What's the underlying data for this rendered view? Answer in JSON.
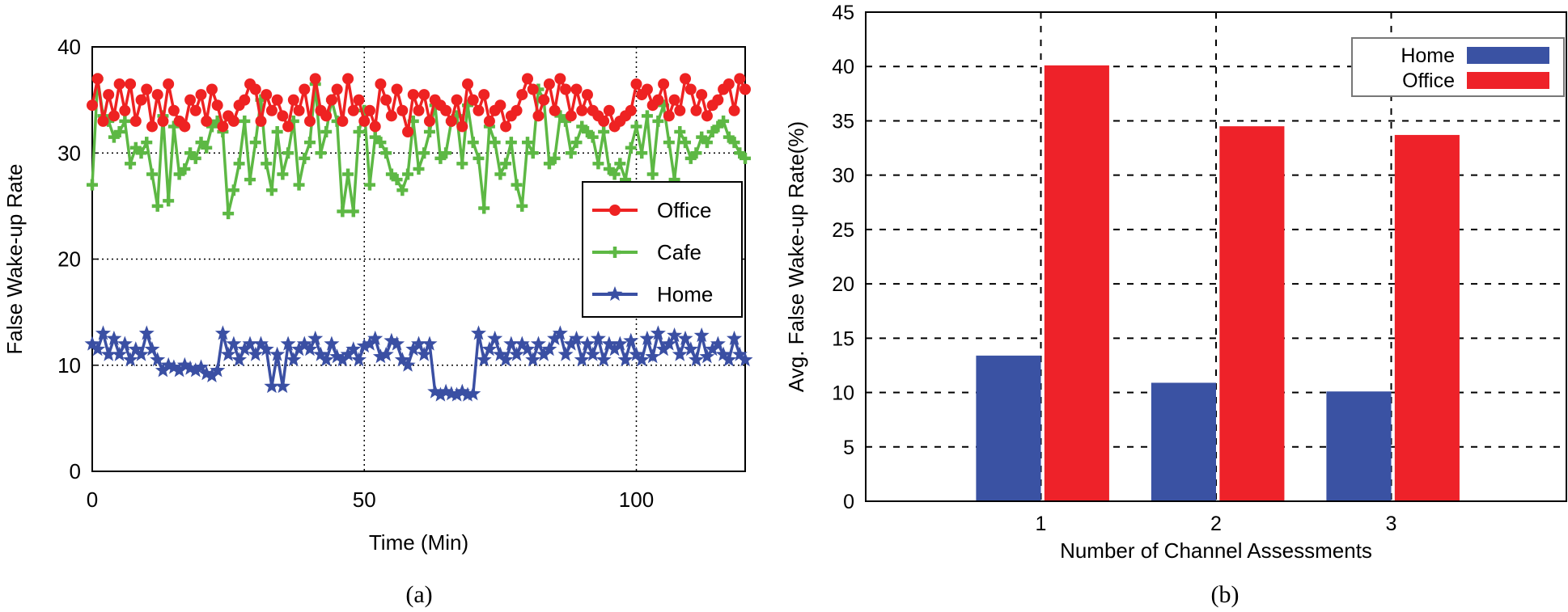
{
  "chart_data": [
    {
      "type": "line",
      "caption": "(a)",
      "xlabel": "Time (Min)",
      "ylabel": "False Wake-up Rate",
      "xlim": [
        0,
        120
      ],
      "ylim": [
        0,
        40
      ],
      "xticks": [
        0,
        50,
        100
      ],
      "yticks": [
        0,
        10,
        20,
        30,
        40
      ],
      "grid": true,
      "legend_position": "center-right",
      "x_start": 0,
      "x_step": 1,
      "series": [
        {
          "name": "Office",
          "color": "#ee2222",
          "marker": "circle",
          "values": [
            34.5,
            37,
            33,
            35.5,
            33.5,
            36.5,
            34,
            36.5,
            33,
            35,
            36,
            32.5,
            35.5,
            33,
            36.5,
            34,
            33,
            32.5,
            35,
            34,
            35.5,
            33,
            36,
            34.5,
            32.5,
            33.5,
            33,
            34.5,
            35,
            36.5,
            36,
            33,
            35.5,
            34,
            35,
            33.5,
            32.5,
            35,
            34,
            36,
            33,
            37,
            34,
            33.5,
            35,
            36,
            33,
            37,
            34,
            35,
            33,
            34,
            32.5,
            36.5,
            35,
            33.5,
            36,
            34,
            32,
            35.5,
            34,
            35.5,
            33,
            35,
            34.5,
            34,
            33,
            35,
            32.5,
            36.5,
            35,
            34,
            35.5,
            33,
            34,
            34.5,
            32.5,
            33.5,
            34,
            35.5,
            37,
            36,
            33.5,
            35,
            36.5,
            34,
            37,
            36,
            33.5,
            36,
            34,
            35.5,
            34,
            33.5,
            33,
            34,
            32.5,
            33,
            33.5,
            34,
            36.5,
            35.5,
            36,
            34.5,
            35,
            36.5,
            33.5,
            35,
            34,
            37,
            36,
            34,
            35.5,
            33.5,
            34.5,
            35,
            36,
            36.5,
            34,
            37,
            36
          ]
        },
        {
          "name": "Cafe",
          "color": "#5db844",
          "marker": "plus",
          "values": [
            27,
            37,
            33.5,
            33,
            31.5,
            32,
            33,
            29,
            30.5,
            30,
            31,
            28,
            25,
            33.5,
            25.5,
            32.5,
            28,
            28.5,
            30,
            29.5,
            31,
            30.5,
            32.5,
            33,
            32,
            24.3,
            26.5,
            29,
            33,
            27.5,
            31,
            35,
            29,
            26.5,
            32,
            28,
            30,
            33,
            27,
            29.5,
            31,
            36.5,
            30,
            32,
            35,
            33,
            24.5,
            28,
            24.5,
            32,
            34,
            27,
            31.5,
            31,
            30,
            28,
            27.5,
            26.5,
            28,
            33,
            28.5,
            30,
            32,
            34.5,
            29.5,
            30,
            33,
            33.5,
            29,
            34.5,
            31,
            29.5,
            24.8,
            32.5,
            31,
            28,
            29,
            31,
            27,
            25,
            31,
            30,
            36,
            35,
            29,
            29.5,
            33.5,
            33,
            30,
            31,
            32.5,
            32,
            31.5,
            29,
            32,
            28.5,
            28,
            29,
            27.5,
            30.5,
            32.5,
            30,
            33.5,
            28,
            33,
            34.5,
            31,
            27.5,
            32,
            31,
            29.5,
            30,
            31.5,
            31,
            32,
            32.5,
            33,
            31.5,
            31,
            30,
            29.5
          ]
        },
        {
          "name": "Home",
          "color": "#3a4fa3",
          "marker": "star",
          "values": [
            12,
            11.5,
            13,
            11,
            12.5,
            11,
            12,
            10.5,
            11.5,
            11,
            13,
            11.5,
            10.5,
            9.5,
            10,
            9.8,
            9.5,
            10,
            9.7,
            9.5,
            9.8,
            9.2,
            9,
            9.5,
            13,
            11,
            12,
            10.5,
            11.5,
            12,
            11,
            12,
            11.5,
            8,
            11,
            8,
            12,
            10.5,
            11.5,
            12,
            11.5,
            12.5,
            11,
            10.5,
            12,
            10.8,
            10.5,
            11,
            11.5,
            10.5,
            11.8,
            12,
            12.5,
            10.8,
            11,
            12.3,
            12,
            10.5,
            10,
            11.5,
            12,
            11,
            12,
            7.5,
            7.2,
            7.5,
            7.3,
            7.2,
            7.5,
            7.2,
            7.3,
            13,
            10.5,
            11.5,
            12.5,
            11,
            10.5,
            12,
            11,
            12,
            11.5,
            10.5,
            12,
            11,
            11.5,
            12.5,
            13,
            11,
            12,
            12.5,
            10.5,
            12,
            11,
            12.5,
            10.5,
            12,
            11.5,
            12,
            10.5,
            12.3,
            11,
            10.5,
            12.5,
            10.8,
            13,
            11.5,
            12,
            12.8,
            11,
            12.5,
            11.5,
            10.5,
            12.8,
            10.8,
            11.5,
            12,
            11,
            10.5,
            12.5,
            11,
            10.5
          ]
        }
      ]
    },
    {
      "type": "bar",
      "caption": "(b)",
      "xlabel": "Number of Channel Assessments",
      "ylabel": "Avg. False Wake-up Rate(%)",
      "categories": [
        "1",
        "2",
        "3"
      ],
      "xlim": [
        0,
        4
      ],
      "ylim": [
        0,
        45
      ],
      "yticks": [
        0,
        5,
        10,
        15,
        20,
        25,
        30,
        35,
        40,
        45
      ],
      "grid": true,
      "legend_position": "top-right",
      "series": [
        {
          "name": "Home",
          "color": "#3a52a3",
          "values": [
            13.4,
            10.9,
            10.1
          ]
        },
        {
          "name": "Office",
          "color": "#ee2229",
          "values": [
            40.1,
            34.5,
            33.7
          ]
        }
      ]
    }
  ]
}
